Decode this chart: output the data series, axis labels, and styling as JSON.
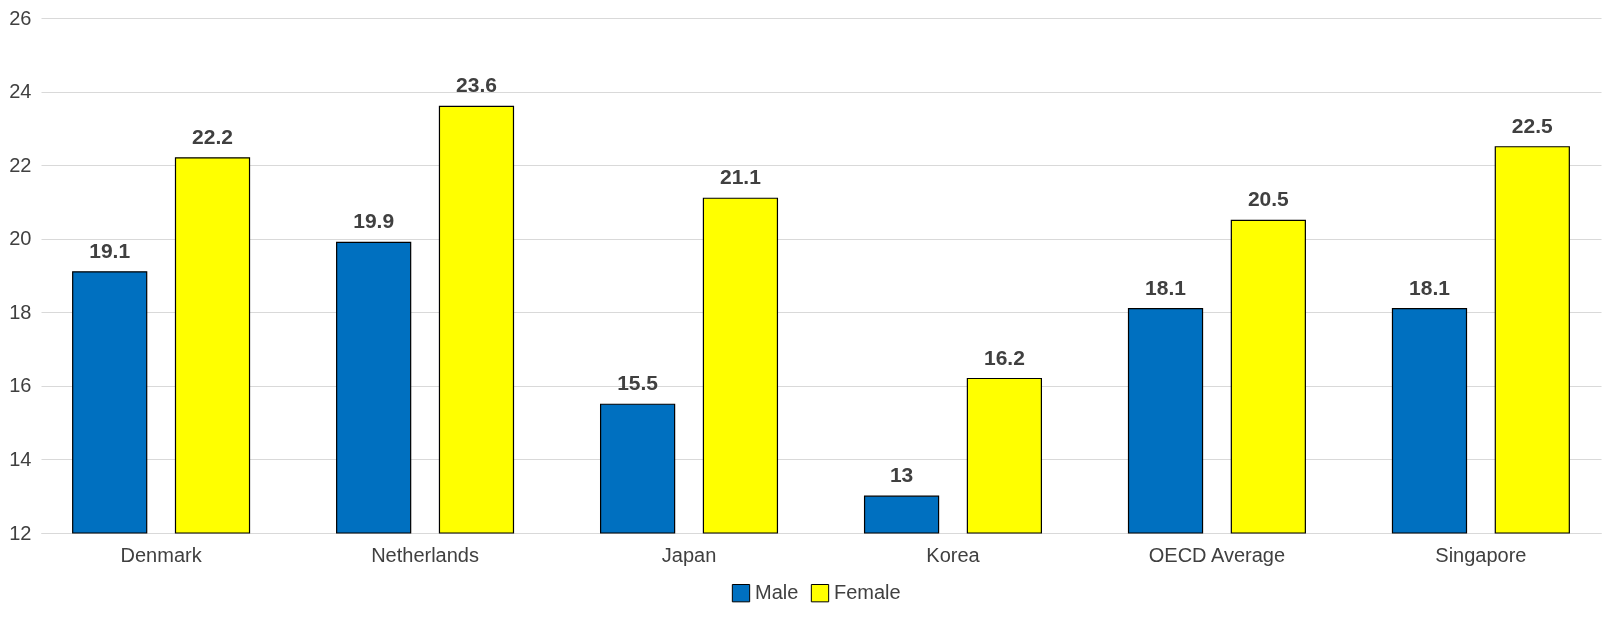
{
  "chart_data": {
    "type": "bar",
    "categories": [
      "Denmark",
      "Netherlands",
      "Japan",
      "Korea",
      "OECD Average",
      "Singapore"
    ],
    "series": [
      {
        "name": "Male",
        "color": "#0070c0",
        "values": [
          19.1,
          19.9,
          15.5,
          13,
          18.1,
          18.1
        ]
      },
      {
        "name": "Female",
        "color": "#ffff00",
        "values": [
          22.2,
          23.6,
          21.1,
          16.2,
          20.5,
          22.5
        ]
      }
    ],
    "ylim": [
      12,
      26
    ],
    "yticks": [
      12,
      14,
      16,
      18,
      20,
      22,
      24,
      26
    ],
    "grid": "y",
    "legend": "bottom",
    "data_labels": true
  }
}
